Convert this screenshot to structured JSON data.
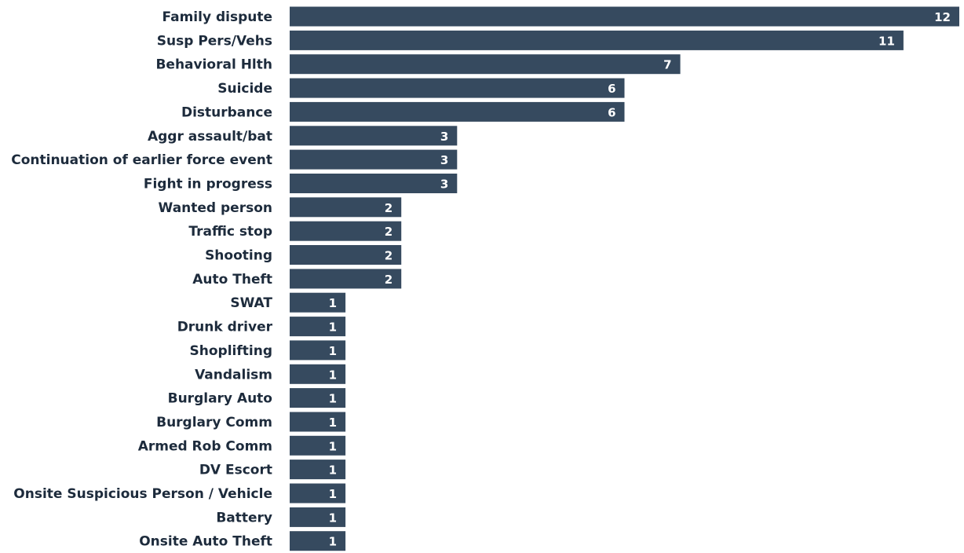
{
  "chart_data": {
    "type": "bar",
    "orientation": "horizontal",
    "title": "",
    "xlabel": "",
    "ylabel": "",
    "categories": [
      "Family dispute",
      "Susp Pers/Vehs",
      "Behavioral Hlth",
      "Suicide",
      "Disturbance",
      "Aggr assault/bat",
      "Continuation of earlier force event",
      "Fight in progress",
      "Wanted person",
      "Traffic stop",
      "Shooting",
      "Auto Theft",
      "SWAT",
      "Drunk driver",
      "Shoplifting",
      "Vandalism",
      "Burglary Auto",
      "Burglary Comm",
      "Armed Rob Comm",
      "DV Escort",
      "Onsite Suspicious Person / Vehicle",
      "Battery",
      "Onsite Auto Theft"
    ],
    "values": [
      12,
      11,
      7,
      6,
      6,
      3,
      3,
      3,
      2,
      2,
      2,
      2,
      1,
      1,
      1,
      1,
      1,
      1,
      1,
      1,
      1,
      1,
      1
    ],
    "xlim": [
      0,
      12
    ],
    "data_labels": true,
    "grid": false,
    "legend": "none",
    "colors": {
      "bar": "#364a5f",
      "label_text": "#1d2b3c",
      "value_text": "#ffffff"
    }
  }
}
